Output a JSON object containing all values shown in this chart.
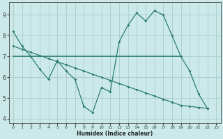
{
  "line1_x": [
    0,
    1,
    2,
    3,
    4,
    5,
    6,
    7,
    8,
    9,
    10,
    11,
    12,
    13,
    14,
    15,
    16,
    17,
    18,
    19,
    20,
    21,
    22
  ],
  "line1_y": [
    8.2,
    7.5,
    7.0,
    6.4,
    5.9,
    6.8,
    6.3,
    5.9,
    4.6,
    4.3,
    5.5,
    5.3,
    7.7,
    8.5,
    9.1,
    8.7,
    9.2,
    9.0,
    8.0,
    7.0,
    6.3,
    5.2,
    4.5
  ],
  "line2_x": [
    0,
    19
  ],
  "line2_y": [
    7.0,
    7.0
  ],
  "line3_x": [
    0,
    1,
    2,
    3,
    4,
    5,
    6,
    7,
    8,
    9,
    10,
    11,
    12,
    13,
    14,
    15,
    16,
    17,
    18,
    19,
    20,
    21,
    22
  ],
  "line3_y": [
    7.5,
    7.35,
    7.2,
    7.05,
    6.9,
    6.75,
    6.6,
    6.45,
    6.3,
    6.15,
    6.0,
    5.85,
    5.7,
    5.55,
    5.4,
    5.25,
    5.1,
    4.95,
    4.8,
    4.65,
    4.6,
    4.55,
    4.5
  ],
  "line_color": "#2a7d6e",
  "bg_color": "#cce9ea",
  "grid_color": "#aacccc",
  "xlabel": "Humidex (Indice chaleur)",
  "xlim": [
    -0.5,
    23.5
  ],
  "ylim": [
    3.8,
    9.6
  ],
  "yticks": [
    4,
    5,
    6,
    7,
    8,
    9
  ],
  "xticks": [
    0,
    1,
    2,
    3,
    4,
    5,
    6,
    7,
    8,
    9,
    10,
    11,
    12,
    13,
    14,
    15,
    16,
    17,
    18,
    19,
    20,
    21,
    22,
    23
  ]
}
